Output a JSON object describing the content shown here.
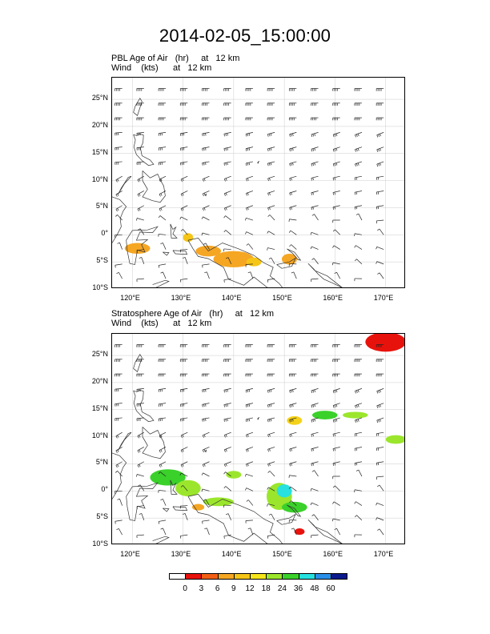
{
  "page": {
    "title": "2014-02-05_15:00:00"
  },
  "panels": [
    {
      "id": "pbl",
      "field_line": "PBL Age of Air   (hr)     at   12 km",
      "wind_line": "Wind    (kts)      at   12 km",
      "shading_blobs": [
        {
          "lon": 121,
          "lat": -2.5,
          "rx": 2.5,
          "ry": 1.0,
          "color": "#f5a623"
        },
        {
          "lon": 131,
          "lat": -0.5,
          "rx": 1.0,
          "ry": 0.8,
          "color": "#f5c518"
        },
        {
          "lon": 135,
          "lat": -3.0,
          "rx": 2.5,
          "ry": 1.0,
          "color": "#f5a623"
        },
        {
          "lon": 140,
          "lat": -4.5,
          "rx": 4.0,
          "ry": 1.5,
          "color": "#f5a623"
        },
        {
          "lon": 144,
          "lat": -5.0,
          "rx": 1.5,
          "ry": 0.8,
          "color": "#f5c518"
        },
        {
          "lon": 151,
          "lat": -4.5,
          "rx": 1.5,
          "ry": 1.0,
          "color": "#f5a623"
        }
      ]
    },
    {
      "id": "strat",
      "field_line": "Stratosphere Age of Air   (hr)     at   12 km",
      "wind_line": "Wind    (kts)      at   12 km",
      "shading_blobs": [
        {
          "lon": 170,
          "lat": 27.5,
          "rx": 4.0,
          "ry": 1.8,
          "color": "#e8120c"
        },
        {
          "lon": 158,
          "lat": 14.0,
          "rx": 2.5,
          "ry": 0.8,
          "color": "#3ad12a"
        },
        {
          "lon": 164,
          "lat": 14.0,
          "rx": 2.5,
          "ry": 0.6,
          "color": "#9be62c"
        },
        {
          "lon": 152,
          "lat": 13.0,
          "rx": 1.5,
          "ry": 0.8,
          "color": "#f5d21a"
        },
        {
          "lon": 172,
          "lat": 9.5,
          "rx": 2.0,
          "ry": 0.8,
          "color": "#9be62c"
        },
        {
          "lon": 127,
          "lat": 2.5,
          "rx": 3.5,
          "ry": 1.5,
          "color": "#3ad12a"
        },
        {
          "lon": 131,
          "lat": 0.5,
          "rx": 2.5,
          "ry": 1.5,
          "color": "#9be62c"
        },
        {
          "lon": 137,
          "lat": -2.0,
          "rx": 3.0,
          "ry": 0.8,
          "color": "#9be62c"
        },
        {
          "lon": 140,
          "lat": 3.0,
          "rx": 1.5,
          "ry": 0.7,
          "color": "#9be62c"
        },
        {
          "lon": 149,
          "lat": -1.0,
          "rx": 2.5,
          "ry": 2.5,
          "color": "#9be62c"
        },
        {
          "lon": 150,
          "lat": 0.0,
          "rx": 1.5,
          "ry": 1.2,
          "color": "#27e0e0"
        },
        {
          "lon": 152,
          "lat": -3.0,
          "rx": 2.5,
          "ry": 1.0,
          "color": "#3ad12a"
        },
        {
          "lon": 133,
          "lat": -3.0,
          "rx": 1.2,
          "ry": 0.6,
          "color": "#f5a623"
        },
        {
          "lon": 153,
          "lat": -7.5,
          "rx": 1.0,
          "ry": 0.6,
          "color": "#e8120c"
        }
      ]
    }
  ],
  "axes": {
    "lon_range": [
      116,
      174
    ],
    "lat_range": [
      -10,
      29
    ],
    "lon_ticks": [
      120,
      130,
      140,
      150,
      160,
      170
    ],
    "lon_tick_labels": [
      "120°E",
      "130°E",
      "140°E",
      "150°E",
      "160°E",
      "170°E"
    ],
    "lat_ticks": [
      25,
      20,
      15,
      10,
      5,
      0,
      -5,
      -10
    ],
    "lat_tick_labels": [
      "25°N",
      "20°N",
      "15°N",
      "10°N",
      "5°N",
      "0°",
      "5°S",
      "10°S"
    ]
  },
  "colorbar": {
    "labels": [
      "0",
      "3",
      "6",
      "9",
      "12",
      "18",
      "24",
      "36",
      "48",
      "60"
    ],
    "colors": [
      "#ffffff",
      "#e8120c",
      "#f25f14",
      "#f5a623",
      "#f5c518",
      "#f5e51a",
      "#9be62c",
      "#3ad12a",
      "#27e0e0",
      "#2a8fe8",
      "#0a1a8c"
    ]
  },
  "colors": {
    "coastline": "#333333",
    "grid": "#cccccc",
    "barb": "#222222"
  }
}
